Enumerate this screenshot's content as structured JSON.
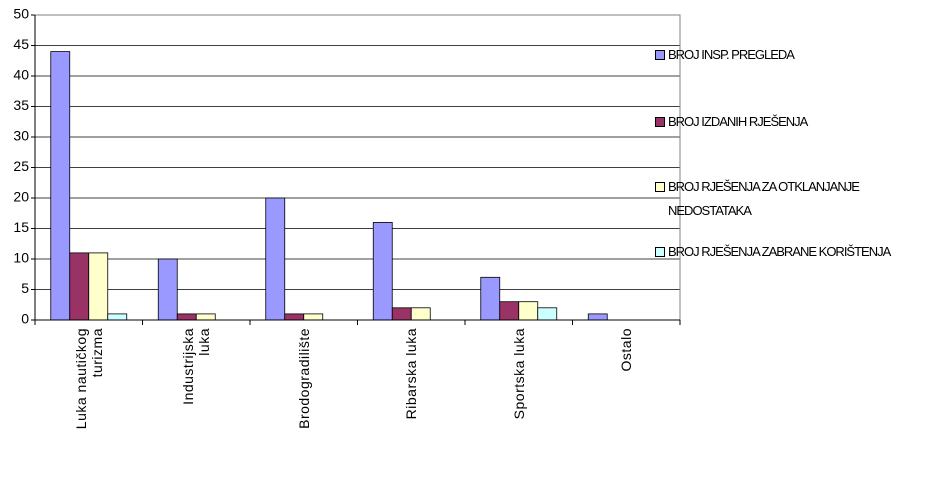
{
  "chart_data": {
    "type": "bar",
    "categories": [
      "Luka nautičkog turizma",
      "Industrijska luka",
      "Brodogradilište",
      "Ribarska luka",
      "Sportska luka",
      "Ostalo"
    ],
    "series": [
      {
        "name": "BROJ INSP. PREGLEDA",
        "color": "#9999ff",
        "values": [
          44,
          10,
          20,
          16,
          7,
          1
        ]
      },
      {
        "name": "BROJ IZDANIH RJEŠENJA",
        "color": "#993366",
        "values": [
          11,
          1,
          1,
          2,
          3,
          0
        ]
      },
      {
        "name": "BROJ RJEŠENJA ZA OTKLANJANJE NEDOSTATAKA",
        "color": "#ffffcc",
        "values": [
          11,
          1,
          1,
          2,
          3,
          0
        ]
      },
      {
        "name": "BROJ RJEŠENJA ZABRANE KORIŠTENJA",
        "color": "#ccffff",
        "values": [
          1,
          0,
          0,
          0,
          2,
          0
        ]
      }
    ],
    "ylim": [
      0,
      50
    ],
    "yticks": [
      0,
      5,
      10,
      15,
      20,
      25,
      30,
      35,
      40,
      45,
      50
    ],
    "grid": true,
    "legend": "right"
  }
}
